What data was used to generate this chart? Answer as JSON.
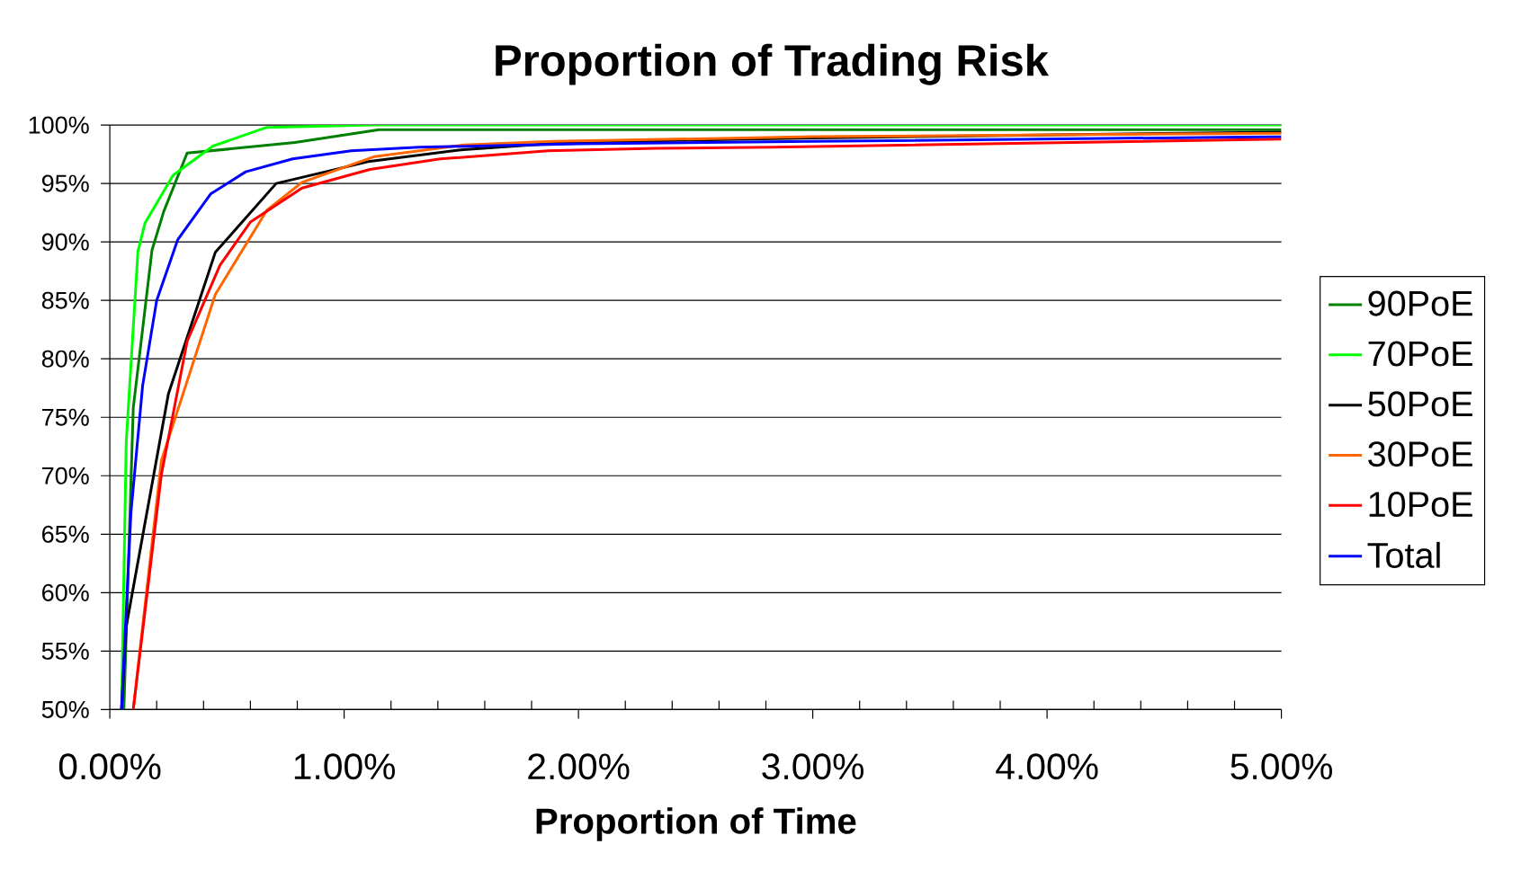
{
  "chart_data": {
    "type": "line",
    "title": "Proportion of Trading Risk",
    "xlabel": "Proportion of Time",
    "xlim": [
      0,
      5
    ],
    "ylim": [
      50,
      100
    ],
    "xticks": [
      {
        "value": 0,
        "label": "0.00%"
      },
      {
        "value": 1,
        "label": "1.00%"
      },
      {
        "value": 2,
        "label": "2.00%"
      },
      {
        "value": 3,
        "label": "3.00%"
      },
      {
        "value": 4,
        "label": "4.00%"
      },
      {
        "value": 5,
        "label": "5.00%"
      },
      {
        "value": 0.2,
        "label": null
      },
      {
        "value": 0.4,
        "label": null
      },
      {
        "value": 0.6,
        "label": null
      },
      {
        "value": 0.8,
        "label": null
      },
      {
        "value": 1.2,
        "label": null
      },
      {
        "value": 1.4,
        "label": null
      },
      {
        "value": 1.6,
        "label": null
      },
      {
        "value": 1.8,
        "label": null
      },
      {
        "value": 2.2,
        "label": null
      },
      {
        "value": 2.4,
        "label": null
      },
      {
        "value": 2.6,
        "label": null
      },
      {
        "value": 2.8,
        "label": null
      },
      {
        "value": 3.2,
        "label": null
      },
      {
        "value": 3.4,
        "label": null
      },
      {
        "value": 3.6,
        "label": null
      },
      {
        "value": 3.8,
        "label": null
      },
      {
        "value": 4.2,
        "label": null
      },
      {
        "value": 4.4,
        "label": null
      },
      {
        "value": 4.6,
        "label": null
      },
      {
        "value": 4.8,
        "label": null
      }
    ],
    "yticks": [
      {
        "value": 50,
        "label": "50%"
      },
      {
        "value": 55,
        "label": "55%"
      },
      {
        "value": 60,
        "label": "60%"
      },
      {
        "value": 65,
        "label": "65%"
      },
      {
        "value": 70,
        "label": "70%"
      },
      {
        "value": 75,
        "label": "75%"
      },
      {
        "value": 80,
        "label": "80%"
      },
      {
        "value": 85,
        "label": "85%"
      },
      {
        "value": 90,
        "label": "90%"
      },
      {
        "value": 95,
        "label": "95%"
      },
      {
        "value": 100,
        "label": "100%"
      }
    ],
    "grid": "y",
    "legend": "right",
    "marker": "none",
    "line_style": "solid",
    "series": [
      {
        "name": "90PoE",
        "color": "#008000",
        "x": [
          0.06,
          0.1,
          0.18,
          0.23,
          0.33,
          0.79,
          1.15,
          5.0
        ],
        "values": [
          50,
          75.8,
          89.3,
          92.6,
          97.6,
          98.5,
          99.6,
          99.6
        ]
      },
      {
        "name": "70PoE",
        "color": "#00ff00",
        "x": [
          0.05,
          0.07,
          0.12,
          0.15,
          0.27,
          0.44,
          0.67,
          1.13,
          5.0
        ],
        "values": [
          50,
          72.9,
          89.2,
          91.6,
          95.7,
          98.2,
          99.8,
          100,
          100
        ]
      },
      {
        "name": "50PoE",
        "color": "#000000",
        "x": [
          0.05,
          0.07,
          0.25,
          0.45,
          0.71,
          1.11,
          1.51,
          1.95,
          3.0,
          5.0
        ],
        "values": [
          50,
          57.1,
          77.0,
          89.1,
          95.0,
          96.9,
          97.9,
          98.5,
          98.9,
          99.4
        ]
      },
      {
        "name": "30PoE",
        "color": "#ff6600",
        "x": [
          0.1,
          0.22,
          0.45,
          0.67,
          0.82,
          1.13,
          1.51,
          1.89,
          3.0,
          5.0
        ],
        "values": [
          50,
          71.3,
          85.5,
          92.7,
          95.1,
          97.3,
          98.3,
          98.6,
          99.0,
          99.3
        ]
      },
      {
        "name": "10PoE",
        "color": "#ff0000",
        "x": [
          0.1,
          0.22,
          0.33,
          0.47,
          0.6,
          0.82,
          1.11,
          1.41,
          1.87,
          2.33,
          2.83,
          5.0
        ],
        "values": [
          50,
          70.1,
          81.5,
          88.0,
          91.7,
          94.6,
          96.2,
          97.1,
          97.8,
          98.0,
          98.1,
          98.8
        ]
      },
      {
        "name": "Total",
        "color": "#0000ff",
        "x": [
          0.05,
          0.09,
          0.14,
          0.2,
          0.29,
          0.43,
          0.58,
          0.78,
          1.03,
          1.32,
          2.0,
          3.0,
          5.0
        ],
        "values": [
          50,
          66.8,
          77.7,
          85.0,
          90.2,
          94.1,
          96.0,
          97.1,
          97.8,
          98.1,
          98.4,
          98.6,
          99.0
        ]
      }
    ]
  }
}
